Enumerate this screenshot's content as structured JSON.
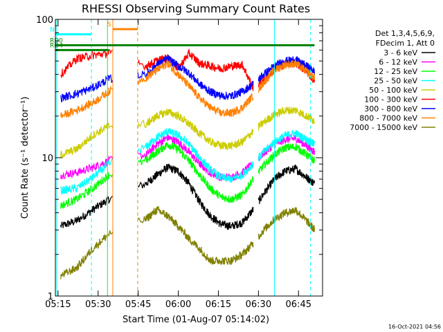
{
  "chart_data": {
    "type": "line",
    "title": "RHESSI Observing Summary Count Rates",
    "xlabel": "Start Time (01-Aug-07 05:14:02)",
    "ylabel": "Count Rate (s⁻¹ detector⁻¹)",
    "y_scale": "log",
    "ylim": [
      1,
      100
    ],
    "xlim_minutes": [
      0,
      100
    ],
    "x_ticks": [
      "05:15",
      "05:30",
      "05:45",
      "06:00",
      "06:15",
      "06:30",
      "06:45"
    ],
    "y_ticks": [
      "1",
      "10",
      "100"
    ],
    "legend": {
      "placement": "right",
      "header": [
        "Det 1,3,4,5,6,9,",
        "FDecim 1, Att 0"
      ]
    },
    "series": [
      {
        "name": "3 - 6 keV",
        "color": "#000000",
        "values": [
          [
            2,
            3.2
          ],
          [
            8,
            3.5
          ],
          [
            14,
            4.2
          ],
          [
            20,
            5.0
          ],
          [
            34,
            6.5
          ],
          [
            38,
            7.5
          ],
          [
            42,
            8.5
          ],
          [
            46,
            8.0
          ],
          [
            50,
            6.5
          ],
          [
            54,
            4.8
          ],
          [
            58,
            3.8
          ],
          [
            62,
            3.3
          ],
          [
            66,
            3.2
          ],
          [
            70,
            3.4
          ],
          [
            74,
            4.2
          ],
          [
            78,
            5.5
          ],
          [
            82,
            7.0
          ],
          [
            86,
            8.0
          ],
          [
            90,
            8.3
          ],
          [
            94,
            7.2
          ],
          [
            97,
            6.5
          ]
        ]
      },
      {
        "name": "6 - 12 keV",
        "color": "#ff00ff",
        "values": [
          [
            2,
            7.5
          ],
          [
            8,
            7.8
          ],
          [
            14,
            8.5
          ],
          [
            20,
            9.5
          ],
          [
            34,
            10.5
          ],
          [
            38,
            12.5
          ],
          [
            42,
            14.0
          ],
          [
            46,
            13.0
          ],
          [
            50,
            11.0
          ],
          [
            54,
            9.0
          ],
          [
            58,
            7.8
          ],
          [
            62,
            7.2
          ],
          [
            66,
            7.2
          ],
          [
            70,
            7.8
          ],
          [
            74,
            9.0
          ],
          [
            78,
            10.8
          ],
          [
            82,
            12.5
          ],
          [
            86,
            13.5
          ],
          [
            90,
            13.8
          ],
          [
            94,
            12.2
          ],
          [
            97,
            11.0
          ]
        ]
      },
      {
        "name": "12 - 25 keV",
        "color": "#00ff00",
        "values": [
          [
            2,
            4.5
          ],
          [
            8,
            5.0
          ],
          [
            14,
            6.0
          ],
          [
            20,
            7.5
          ],
          [
            34,
            9.5
          ],
          [
            38,
            11.0
          ],
          [
            42,
            12.5
          ],
          [
            46,
            11.5
          ],
          [
            50,
            9.5
          ],
          [
            54,
            7.5
          ],
          [
            58,
            6.0
          ],
          [
            62,
            5.2
          ],
          [
            66,
            5.0
          ],
          [
            70,
            5.4
          ],
          [
            74,
            7.0
          ],
          [
            78,
            8.8
          ],
          [
            82,
            10.5
          ],
          [
            86,
            11.8
          ],
          [
            90,
            12.0
          ],
          [
            94,
            10.5
          ],
          [
            97,
            9.5
          ]
        ]
      },
      {
        "name": "25 - 50 keV",
        "color": "#00ffff",
        "values": [
          [
            2,
            5.8
          ],
          [
            8,
            6.0
          ],
          [
            14,
            7.2
          ],
          [
            20,
            9.0
          ],
          [
            34,
            12.0
          ],
          [
            38,
            14.0
          ],
          [
            42,
            15.5
          ],
          [
            46,
            14.5
          ],
          [
            50,
            12.5
          ],
          [
            54,
            10.0
          ],
          [
            58,
            8.2
          ],
          [
            62,
            7.2
          ],
          [
            66,
            7.0
          ],
          [
            70,
            7.5
          ],
          [
            74,
            9.0
          ],
          [
            78,
            11.0
          ],
          [
            82,
            13.0
          ],
          [
            86,
            14.5
          ],
          [
            90,
            15.0
          ],
          [
            94,
            13.5
          ],
          [
            97,
            12.5
          ]
        ]
      },
      {
        "name": "50 - 100 keV",
        "color": "#cccc00",
        "values": [
          [
            2,
            10.5
          ],
          [
            8,
            11.5
          ],
          [
            14,
            14.5
          ],
          [
            20,
            17.0
          ],
          [
            34,
            17.5
          ],
          [
            38,
            20.0
          ],
          [
            42,
            21.5
          ],
          [
            46,
            20.0
          ],
          [
            50,
            17.5
          ],
          [
            54,
            15.0
          ],
          [
            58,
            13.0
          ],
          [
            62,
            12.2
          ],
          [
            66,
            12.2
          ],
          [
            70,
            13.0
          ],
          [
            74,
            15.5
          ],
          [
            78,
            18.0
          ],
          [
            82,
            20.5
          ],
          [
            86,
            22.0
          ],
          [
            90,
            22.0
          ],
          [
            94,
            20.0
          ],
          [
            97,
            18.5
          ]
        ]
      },
      {
        "name": "100 - 300 keV",
        "color": "#ff0000",
        "values": [
          [
            2,
            40
          ],
          [
            8,
            52
          ],
          [
            14,
            55
          ],
          [
            20,
            57
          ],
          [
            34,
            46
          ],
          [
            38,
            50
          ],
          [
            42,
            53
          ],
          [
            46,
            44
          ],
          [
            50,
            57
          ],
          [
            54,
            48
          ],
          [
            58,
            46
          ],
          [
            62,
            44
          ],
          [
            66,
            46
          ],
          [
            70,
            47
          ],
          [
            74,
            32
          ],
          [
            78,
            37
          ],
          [
            82,
            43
          ],
          [
            86,
            48
          ],
          [
            90,
            48
          ],
          [
            94,
            42
          ],
          [
            97,
            36
          ]
        ]
      },
      {
        "name": "300 - 800 keV",
        "color": "#0000ff",
        "values": [
          [
            2,
            27
          ],
          [
            8,
            29
          ],
          [
            14,
            32
          ],
          [
            20,
            37
          ],
          [
            34,
            40
          ],
          [
            38,
            47
          ],
          [
            42,
            52
          ],
          [
            46,
            46
          ],
          [
            50,
            41
          ],
          [
            54,
            34
          ],
          [
            58,
            30
          ],
          [
            62,
            28
          ],
          [
            66,
            28
          ],
          [
            70,
            30
          ],
          [
            74,
            34
          ],
          [
            78,
            40
          ],
          [
            82,
            46
          ],
          [
            86,
            50
          ],
          [
            90,
            51
          ],
          [
            94,
            46
          ],
          [
            97,
            42
          ]
        ]
      },
      {
        "name": "800 - 7000 keV",
        "color": "#ff8000",
        "values": [
          [
            2,
            20
          ],
          [
            8,
            22
          ],
          [
            14,
            25
          ],
          [
            20,
            30
          ],
          [
            34,
            38
          ],
          [
            38,
            43
          ],
          [
            42,
            48
          ],
          [
            46,
            40
          ],
          [
            50,
            33
          ],
          [
            54,
            27
          ],
          [
            58,
            23
          ],
          [
            62,
            21
          ],
          [
            66,
            21
          ],
          [
            70,
            23
          ],
          [
            74,
            28
          ],
          [
            78,
            35
          ],
          [
            82,
            43
          ],
          [
            86,
            47
          ],
          [
            90,
            48
          ],
          [
            94,
            42
          ],
          [
            97,
            38
          ]
        ]
      },
      {
        "name": "7000 - 15000 keV",
        "color": "#808000",
        "values": [
          [
            2,
            1.4
          ],
          [
            8,
            1.6
          ],
          [
            14,
            2.2
          ],
          [
            20,
            2.8
          ],
          [
            34,
            3.6
          ],
          [
            38,
            4.2
          ],
          [
            42,
            3.8
          ],
          [
            46,
            3.2
          ],
          [
            50,
            2.6
          ],
          [
            54,
            2.2
          ],
          [
            58,
            1.8
          ],
          [
            62,
            1.8
          ],
          [
            66,
            1.8
          ],
          [
            70,
            2.0
          ],
          [
            74,
            2.4
          ],
          [
            78,
            3.0
          ],
          [
            82,
            3.6
          ],
          [
            86,
            4.0
          ],
          [
            90,
            4.2
          ],
          [
            94,
            3.5
          ],
          [
            97,
            3.0
          ]
        ]
      }
    ],
    "annotations": {
      "gaps": [
        [
          21.5,
          30.8
        ],
        [
          74.0,
          76.0
        ]
      ],
      "vlines": [
        {
          "x": 0.5,
          "color": "#00ffff",
          "style": "solid"
        },
        {
          "x": 13.5,
          "color": "#00ffff",
          "style": "dashed"
        },
        {
          "x": 19.5,
          "color": "#00ff00",
          "style": "solid"
        },
        {
          "x": 21.5,
          "color": "#ff8000",
          "style": "solid"
        },
        {
          "x": 30.8,
          "color": "#ff8000",
          "style": "dashed"
        },
        {
          "x": 82.0,
          "color": "#00ffff",
          "style": "solid"
        },
        {
          "x": 95.5,
          "color": "#00ffff",
          "style": "dashed"
        }
      ],
      "flags": [
        {
          "label": "RD0",
          "color": "#008000",
          "x": [
            0,
            97
          ],
          "y": 65
        },
        {
          "label": "RD4",
          "color": "#008000",
          "x": [
            0,
            20
          ],
          "y": 60
        },
        {
          "label": "N",
          "color": "#00ffff",
          "x": [
            0,
            13.5
          ],
          "y": 78
        },
        {
          "label": "S",
          "color": "#ff8000",
          "x": [
            21.5,
            30.8
          ],
          "y": 85
        }
      ]
    },
    "footer": "16-Oct-2021 04:56"
  }
}
